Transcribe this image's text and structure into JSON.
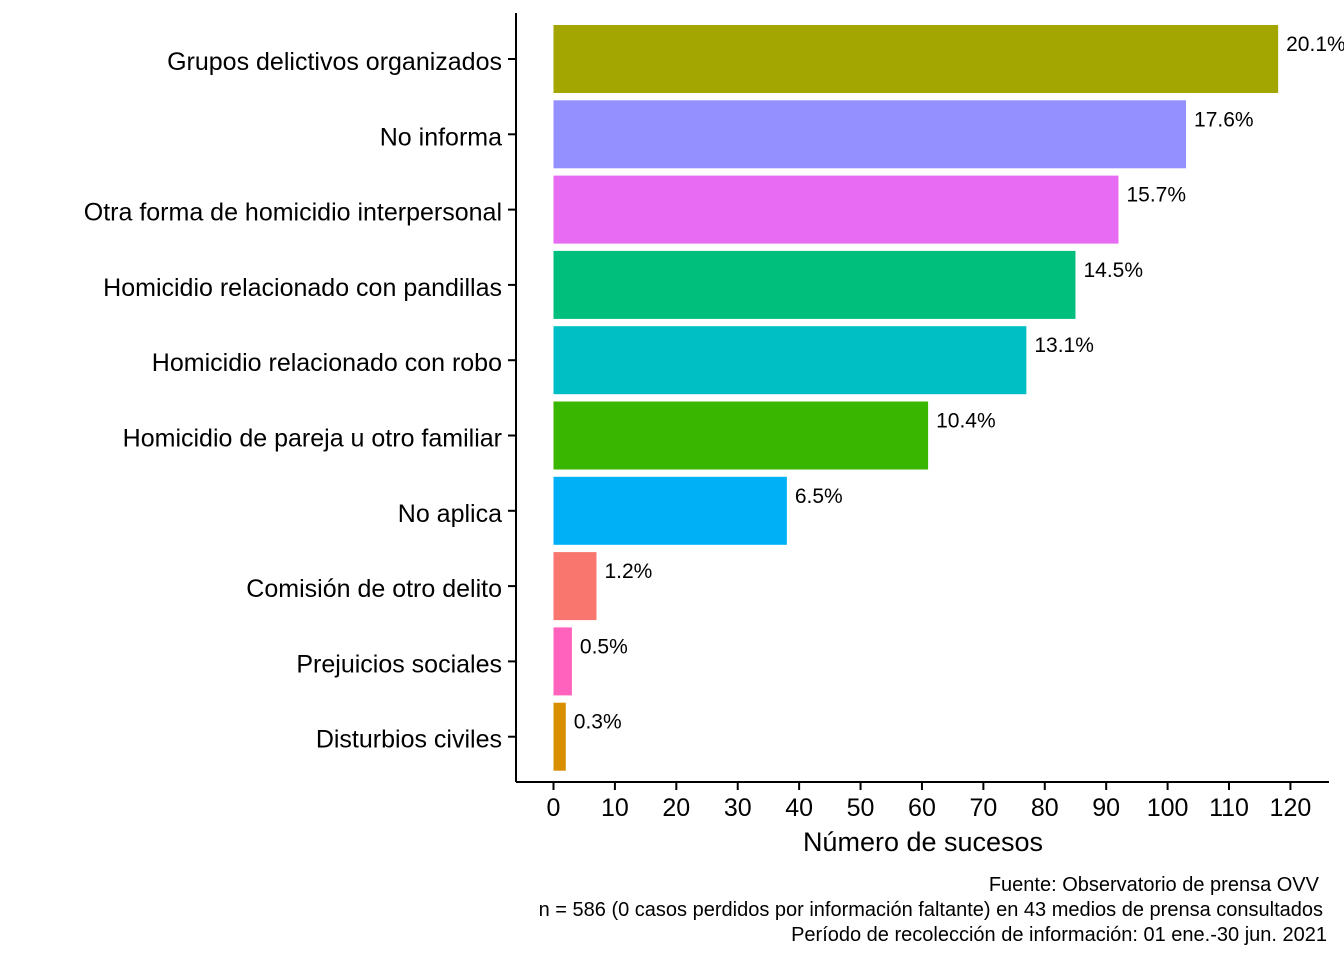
{
  "chart_data": {
    "type": "bar",
    "orientation": "horizontal",
    "categories": [
      "Grupos delictivos organizados",
      "No informa",
      "Otra forma de homicidio interpersonal",
      "Homicidio relacionado con pandillas",
      "Homicidio relacionado con robo",
      "Homicidio de pareja u otro familiar",
      "No aplica",
      "Comisión de otro delito",
      "Prejuicios sociales",
      "Disturbios civiles"
    ],
    "values": [
      118,
      103,
      92,
      85,
      77,
      61,
      38,
      7,
      3,
      2
    ],
    "data_labels": [
      "20.1%",
      "17.6%",
      "15.7%",
      "14.5%",
      "13.1%",
      "10.4%",
      "6.5%",
      "1.2%",
      "0.5%",
      "0.3%"
    ],
    "colors": [
      "#A3A500",
      "#9590FF",
      "#E76BF3",
      "#00BF7D",
      "#00BFC4",
      "#39B600",
      "#00B0F6",
      "#F8766D",
      "#FF62BC",
      "#D89000"
    ],
    "xlabel": "Número de sucesos",
    "ylabel": "",
    "xlim": [
      0,
      120
    ],
    "xticks": [
      0,
      10,
      20,
      30,
      40,
      50,
      60,
      70,
      80,
      90,
      100,
      110,
      120
    ],
    "tick_labels": [
      "0",
      "10",
      "20",
      "30",
      "40",
      "50",
      "60",
      "70",
      "80",
      "90",
      "100",
      "110",
      "120"
    ],
    "grid": false,
    "legend": "none",
    "caption": [
      "Fuente: Observatorio de prensa OVV",
      "n = 586 (0 casos perdidos por información faltante) en 43 medios de prensa consultados",
      "Período de recolección de información: 01 ene.-30 jun. 2021"
    ]
  }
}
